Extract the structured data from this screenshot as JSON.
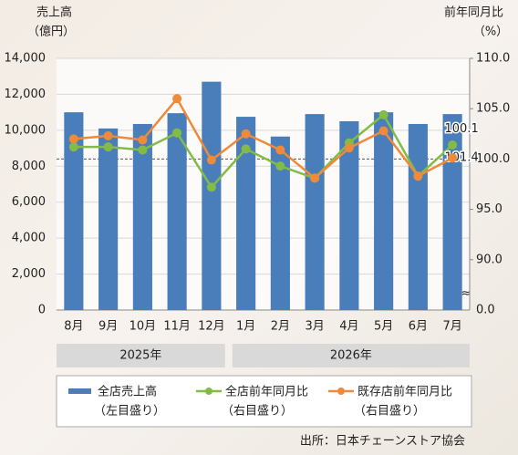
{
  "chart_data": {
    "type": "bar-line",
    "y_title": [
      "売上高",
      "（億円）"
    ],
    "y2_title": [
      "前年同月比",
      "（%）"
    ],
    "categories": [
      "8月",
      "9月",
      "10月",
      "11月",
      "12月",
      "1月",
      "2月",
      "3月",
      "4月",
      "5月",
      "6月",
      "7月"
    ],
    "groups": [
      {
        "label": "2025年",
        "span": [
          0,
          4
        ]
      },
      {
        "label": "2026年",
        "span": [
          5,
          11
        ]
      }
    ],
    "series": [
      {
        "name": "全店売上高",
        "note": "（左目盛り）",
        "type": "bar",
        "color": "#4a7ebb",
        "axis": "y",
        "values": [
          11000,
          10100,
          10350,
          10950,
          12700,
          10750,
          9650,
          10900,
          10500,
          11000,
          10350,
          10900
        ]
      },
      {
        "name": "全店前年同月比",
        "note": "（右目盛り）",
        "type": "line",
        "color": "#84bb47",
        "axis": "y2",
        "labeled_index": 11,
        "values": [
          101.2,
          101.2,
          100.9,
          102.6,
          97.2,
          101.0,
          99.3,
          98.1,
          101.6,
          104.4,
          98.3,
          101.4
        ]
      },
      {
        "name": "既存店前年同月比",
        "note": "（右目盛り）",
        "type": "line",
        "color": "#ef8a3a",
        "axis": "y2",
        "labeled_index": 11,
        "values": [
          102.0,
          102.3,
          101.9,
          106.0,
          99.9,
          102.5,
          100.9,
          98.1,
          101.1,
          102.8,
          98.3,
          100.1
        ]
      }
    ],
    "ylim": [
      0,
      14000
    ],
    "yticks": [
      0,
      {
        "value": 2000,
        "label": "2,000"
      },
      {
        "value": 4000,
        "label": "4,000"
      },
      {
        "value": 6000,
        "label": "6,000"
      },
      {
        "value": 8000,
        "label": "8,000"
      },
      {
        "value": 10000,
        "label": "10,000"
      },
      {
        "value": 12000,
        "label": "12,000"
      },
      {
        "value": 14000,
        "label": "14,000"
      }
    ],
    "y2lim": [
      85,
      110
    ],
    "y2ticks": [
      {
        "value": 90,
        "label": "90.0"
      },
      {
        "value": 95,
        "label": "95.0"
      },
      {
        "value": 100,
        "label": "100.0"
      },
      {
        "value": 105,
        "label": "105.0"
      },
      {
        "value": 110,
        "label": "110.0"
      }
    ],
    "y2_break_label": "0.0",
    "y2_refline": 100,
    "source": "出所：日本チェーンストア協会"
  }
}
